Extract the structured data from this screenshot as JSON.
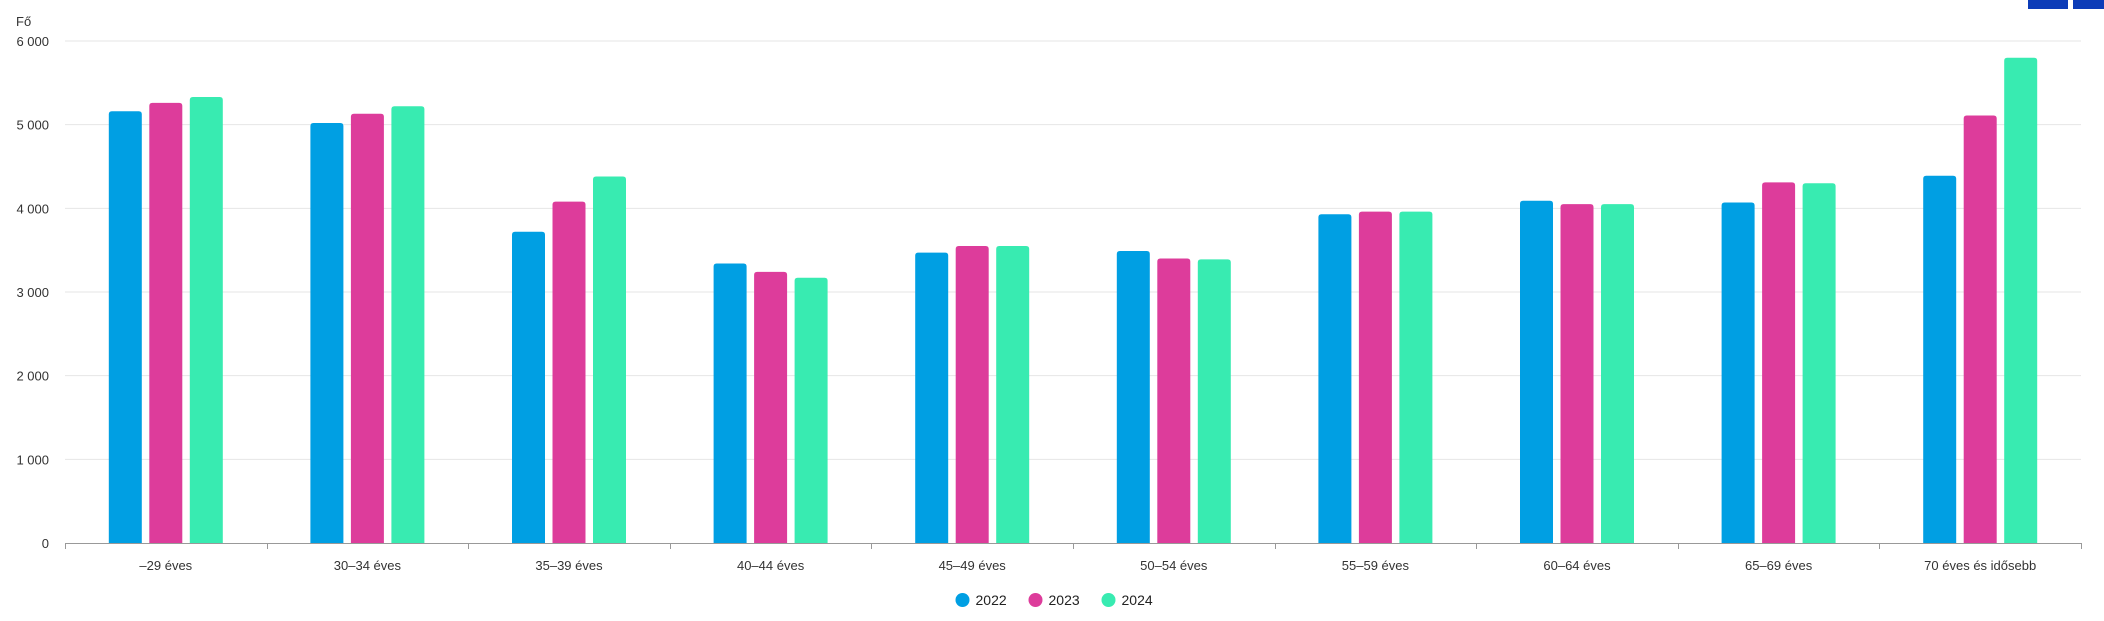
{
  "chart_data": {
    "type": "bar",
    "ylabel": "Fő",
    "ylim": [
      0,
      6000
    ],
    "yticks": [
      {
        "value": 0,
        "label": "0"
      },
      {
        "value": 1000,
        "label": "1 000"
      },
      {
        "value": 2000,
        "label": "2 000"
      },
      {
        "value": 3000,
        "label": "3 000"
      },
      {
        "value": 4000,
        "label": "4 000"
      },
      {
        "value": 5000,
        "label": "5 000"
      },
      {
        "value": 6000,
        "label": "6 000"
      }
    ],
    "grid": true,
    "legend_position": "bottom-center",
    "categories": [
      "–29 éves",
      "30–34 éves",
      "35–39 éves",
      "40–44 éves",
      "45–49 éves",
      "50–54 éves",
      "55–59 éves",
      "60–64 éves",
      "65–69 éves",
      "70 éves és idősebb"
    ],
    "series": [
      {
        "name": "2022",
        "color": "#009fe3",
        "values": [
          5160,
          5020,
          3720,
          3340,
          3470,
          3490,
          3930,
          4090,
          4070,
          4390
        ]
      },
      {
        "name": "2023",
        "color": "#dd3c9b",
        "values": [
          5260,
          5130,
          4080,
          3240,
          3550,
          3400,
          3960,
          4050,
          4310,
          5110
        ]
      },
      {
        "name": "2024",
        "color": "#38ebb1",
        "values": [
          5330,
          5220,
          4380,
          3170,
          3550,
          3390,
          3960,
          4050,
          4300,
          5800
        ]
      }
    ]
  }
}
